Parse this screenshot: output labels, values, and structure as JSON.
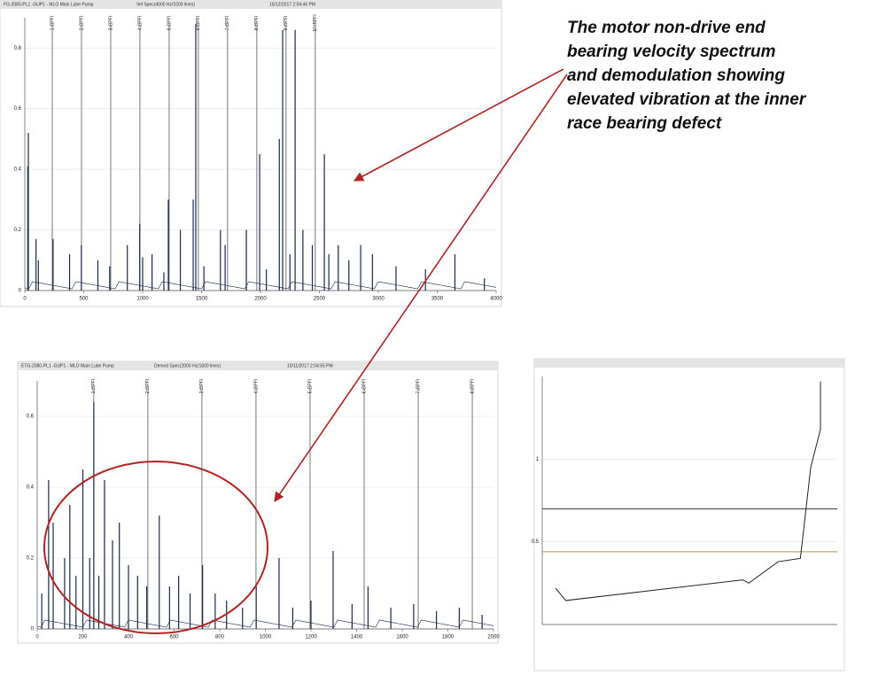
{
  "caption": [
    "The motor non-drive end",
    "bearing velocity spectrum",
    "and demodulation showing",
    "elevated vibration at the inner",
    "race bearing defect"
  ],
  "chart_data": [
    {
      "type": "spectrum",
      "header": [
        "FG-2080-PL1 -GUP1 - MLO Main Lube Pump",
        "Vel Spec(4000 Hz/3200 lines)",
        "10/12/2017 2:04:46 PM"
      ],
      "color": "#1a2a4a",
      "x": [
        25,
        30,
        95,
        115,
        240,
        380,
        480,
        620,
        720,
        870,
        975,
        1000,
        1080,
        1180,
        1218,
        1320,
        1429,
        1451,
        1520,
        1660,
        1700,
        1880,
        1993,
        2050,
        2160,
        2188,
        2250,
        2294,
        2360,
        2440,
        2542,
        2580,
        2660,
        2750,
        2850,
        2950,
        3150,
        3400,
        3650,
        3900
      ],
      "values": [
        0.41,
        0.52,
        0.17,
        0.1,
        0.17,
        0.12,
        0.15,
        0.1,
        0.08,
        0.15,
        0.22,
        0.11,
        0.12,
        0.06,
        0.3,
        0.2,
        0.3,
        0.88,
        0.08,
        0.2,
        0.15,
        0.2,
        0.45,
        0.07,
        0.5,
        0.86,
        0.12,
        0.86,
        0.2,
        0.15,
        0.45,
        0.12,
        0.15,
        0.1,
        0.15,
        0.12,
        0.08,
        0.07,
        0.12,
        0.04
      ],
      "markers": [
        {
          "x": 233,
          "label": "1xBPFI"
        },
        {
          "x": 481,
          "label": "2xBPFI"
        },
        {
          "x": 729,
          "label": "3xBPFI"
        },
        {
          "x": 977,
          "label": "4xBPFI"
        },
        {
          "x": 1225,
          "label": "5xBPFI"
        },
        {
          "x": 1473,
          "label": "6xBPFI"
        },
        {
          "x": 1721,
          "label": "7xBPFI"
        },
        {
          "x": 1969,
          "label": "8xBPFI"
        },
        {
          "x": 2217,
          "label": "9xBPFI"
        },
        {
          "x": 2465,
          "label": "10xBPFI"
        }
      ],
      "xlim": [
        0,
        4000
      ],
      "xticks": [
        0,
        500,
        1000,
        1500,
        2000,
        2500,
        3000,
        3500,
        4000
      ],
      "ylim": [
        0,
        0.9
      ],
      "yticks": [
        0,
        0.2,
        0.4,
        0.6,
        0.8
      ],
      "grid": true
    },
    {
      "type": "spectrum",
      "header": [
        "ETG-2080-PL1 -GUP1 - MLO Main Lube Pump",
        "Demod Spec(2000 Hz/1600 lines)",
        "10/11/2017 2:04:55 PM"
      ],
      "color": "#1a2a4a",
      "x": [
        20,
        50,
        70,
        120,
        143,
        170,
        200,
        230,
        248,
        270,
        295,
        330,
        360,
        400,
        440,
        480,
        535,
        580,
        620,
        670,
        725,
        780,
        830,
        900,
        960,
        1060,
        1120,
        1200,
        1297,
        1380,
        1450,
        1550,
        1650,
        1750,
        1850,
        1950
      ],
      "values": [
        0.1,
        0.42,
        0.3,
        0.2,
        0.35,
        0.15,
        0.45,
        0.2,
        0.64,
        0.15,
        0.42,
        0.25,
        0.3,
        0.18,
        0.15,
        0.12,
        0.32,
        0.12,
        0.15,
        0.1,
        0.18,
        0.1,
        0.08,
        0.06,
        0.12,
        0.2,
        0.06,
        0.08,
        0.22,
        0.07,
        0.12,
        0.06,
        0.07,
        0.05,
        0.06,
        0.04
      ],
      "markers": [
        {
          "x": 248,
          "label": "1xBPFI"
        },
        {
          "x": 485,
          "label": "2xBPFI"
        },
        {
          "x": 722,
          "label": "3xBPFI"
        },
        {
          "x": 959,
          "label": "4xBPFI"
        },
        {
          "x": 1196,
          "label": "5xBPFI"
        },
        {
          "x": 1433,
          "label": "6xBPFI"
        },
        {
          "x": 1670,
          "label": "7xBPFI"
        },
        {
          "x": 1907,
          "label": "8xBPFI"
        }
      ],
      "xlim": [
        0,
        2000
      ],
      "xticks": [
        0,
        200,
        400,
        600,
        800,
        1000,
        1200,
        1400,
        1600,
        1800,
        2000
      ],
      "ylim": [
        0,
        0.7
      ],
      "yticks": [
        0,
        0.2,
        0.4,
        0.6
      ],
      "grid": true
    },
    {
      "type": "line",
      "color": "#222",
      "x": [
        4.5,
        8,
        68,
        70,
        80,
        87.5,
        91,
        94.3,
        94.3
      ],
      "values": [
        0.22,
        0.145,
        0.27,
        0.25,
        0.38,
        0.4,
        0.95,
        1.18,
        1.47
      ],
      "hlines": [
        {
          "value": 0.7,
          "color": "#333"
        },
        {
          "value": 0.44,
          "color": "#a89a3a"
        }
      ],
      "xlim": [
        0,
        100
      ],
      "ylim": [
        0,
        1.5
      ],
      "yticks": [
        0.5,
        1
      ],
      "grid": true
    }
  ]
}
